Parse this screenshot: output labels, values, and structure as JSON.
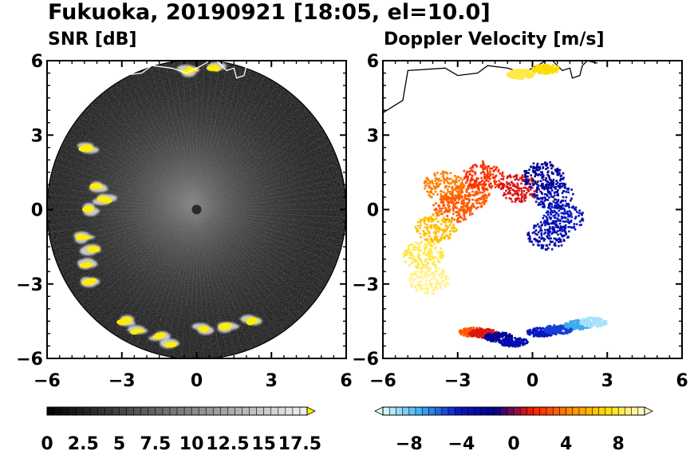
{
  "title": "Fukuoka, 20190921 [18:05, el=10.0]",
  "chart_data": [
    {
      "type": "heatmap",
      "projection": "polar-ppi",
      "title": "SNR [dB]",
      "xlim": [
        -6,
        6
      ],
      "ylim": [
        -6,
        6
      ],
      "x_ticks": [
        -6,
        -3,
        0,
        3,
        6
      ],
      "y_ticks": [
        6,
        3,
        0,
        -3,
        -6
      ],
      "x_tick_labels": [
        "−6",
        "−3",
        "0",
        "3",
        "6"
      ],
      "y_tick_labels": [
        "6",
        "3",
        "0",
        "−3",
        "−6"
      ],
      "max_range": 6,
      "background_color": "#141414",
      "strong_echo_color": "#ffee00",
      "strong_echoes": [
        {
          "x": -4.4,
          "y": 2.5
        },
        {
          "x": -4.0,
          "y": 0.9
        },
        {
          "x": -3.7,
          "y": 0.4
        },
        {
          "x": -4.3,
          "y": 0.0
        },
        {
          "x": -4.6,
          "y": -1.1
        },
        {
          "x": -4.2,
          "y": -1.6
        },
        {
          "x": -4.4,
          "y": -2.2
        },
        {
          "x": -4.3,
          "y": -2.9
        },
        {
          "x": -2.9,
          "y": -4.5
        },
        {
          "x": -2.4,
          "y": -4.9
        },
        {
          "x": -1.5,
          "y": -5.1
        },
        {
          "x": -1.0,
          "y": -5.4
        },
        {
          "x": 0.3,
          "y": -4.8
        },
        {
          "x": 1.2,
          "y": -4.7
        },
        {
          "x": 2.2,
          "y": -4.5
        },
        {
          "x": -0.3,
          "y": 5.6
        },
        {
          "x": 0.7,
          "y": 5.7
        }
      ],
      "colorbar": {
        "min": 0,
        "max": 18,
        "extend": "max",
        "tick_values": [
          0,
          2.5,
          5,
          7.5,
          10,
          12.5,
          15,
          17.5
        ],
        "tick_labels": [
          "0",
          "2.5",
          "5",
          "7.5",
          "10",
          "12.5",
          "15",
          "17.5"
        ],
        "colors": [
          "#000000",
          "#ffffff",
          "#ffee00"
        ]
      }
    },
    {
      "type": "heatmap",
      "projection": "polar-ppi",
      "title": "Doppler Velocity [m/s]",
      "xlim": [
        -6,
        6
      ],
      "ylim": [
        -6,
        6
      ],
      "x_ticks": [
        -6,
        -3,
        0,
        3,
        6
      ],
      "y_ticks": [
        6,
        3,
        0,
        -3,
        -6
      ],
      "x_tick_labels": [
        "−6",
        "−3",
        "0",
        "3",
        "6"
      ],
      "y_tick_labels": [
        "6",
        "3",
        "0",
        "−3",
        "−6"
      ],
      "regions": [
        {
          "x": -2.6,
          "y": 0.6,
          "velocity": 3
        },
        {
          "x": -3.6,
          "y": 1.0,
          "velocity": 4
        },
        {
          "x": -3.2,
          "y": 0.1,
          "velocity": 3
        },
        {
          "x": -2.0,
          "y": 1.4,
          "velocity": 2
        },
        {
          "x": -3.9,
          "y": -0.7,
          "velocity": 6
        },
        {
          "x": -4.4,
          "y": -1.8,
          "velocity": 8
        },
        {
          "x": -4.2,
          "y": -2.8,
          "velocity": 9
        },
        {
          "x": -0.6,
          "y": 0.9,
          "velocity": 1
        },
        {
          "x": 0.8,
          "y": 0.6,
          "velocity": -3
        },
        {
          "x": 1.2,
          "y": -0.3,
          "velocity": -4
        },
        {
          "x": 0.6,
          "y": -1.0,
          "velocity": -3
        },
        {
          "x": 0.4,
          "y": 1.4,
          "velocity": -2
        },
        {
          "x": -2.4,
          "y": -4.9,
          "velocity": 3
        },
        {
          "x": -2.0,
          "y": -4.95,
          "velocity": 1
        },
        {
          "x": -1.4,
          "y": -5.1,
          "velocity": -2
        },
        {
          "x": -0.8,
          "y": -5.3,
          "velocity": -3
        },
        {
          "x": 0.3,
          "y": -4.9,
          "velocity": -4
        },
        {
          "x": 1.0,
          "y": -4.8,
          "velocity": -5
        },
        {
          "x": 1.8,
          "y": -4.6,
          "velocity": -7
        },
        {
          "x": 2.4,
          "y": -4.5,
          "velocity": -9
        },
        {
          "x": -0.5,
          "y": 5.5,
          "velocity": 8
        },
        {
          "x": 0.5,
          "y": 5.7,
          "velocity": 7
        }
      ],
      "colorbar": {
        "min": -10,
        "max": 10,
        "extend": "both",
        "tick_values": [
          -8,
          -4,
          0,
          4,
          8
        ],
        "tick_labels": [
          "−8",
          "−4",
          "0",
          "4",
          "8"
        ],
        "colors": [
          "#ddfaff",
          "#3fb2f2",
          "#0a18c8",
          "#00008b",
          "#ff1a00",
          "#ff8a00",
          "#ffe000",
          "#fffbd8"
        ]
      }
    }
  ]
}
